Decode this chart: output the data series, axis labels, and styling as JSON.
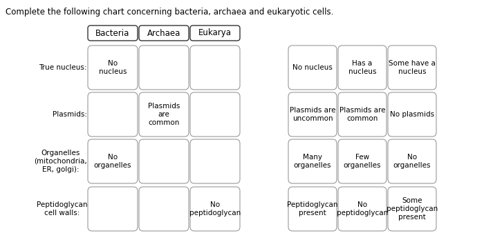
{
  "title": "Complete the following chart concerning bacteria, archaea and eukaryotic cells.",
  "headers": [
    "Bacteria",
    "Archaea",
    "Eukarya"
  ],
  "row_labels": [
    "True nucleus:",
    "Plasmids:",
    "Organelles\n(mitochondria,\nER, golgi):",
    "Peptidoglycan\ncell walls:"
  ],
  "answer_boxes": [
    [
      "No\nnucleus",
      "",
      ""
    ],
    [
      "",
      "Plasmids\nare\ncommon",
      ""
    ],
    [
      "No\norganelles",
      "",
      ""
    ],
    [
      "",
      "",
      "No\npeptidoglycan"
    ]
  ],
  "option_boxes": [
    [
      "No nucleus",
      "Has a\nnucleus",
      "Some have a\nnucleus"
    ],
    [
      "Plasmids are\nuncommon",
      "Plasmids are\ncommon",
      "No plasmids"
    ],
    [
      "Many\norganelles",
      "Few\norganelles",
      "No\norganelles"
    ],
    [
      "Peptidoglycan\npresent",
      "No\npeptidoglycan",
      "Some\npeptidoglycan\npresent"
    ]
  ],
  "bg_color": "#ffffff",
  "box_edge_color": "#999999",
  "header_box_edge": "#333333",
  "text_color": "#000000",
  "font_size": 7.5,
  "title_font_size": 8.5,
  "header_font_size": 8.5
}
